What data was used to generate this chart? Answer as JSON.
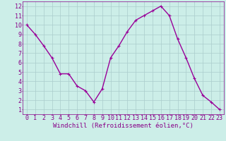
{
  "x": [
    0,
    1,
    2,
    3,
    4,
    5,
    6,
    7,
    8,
    9,
    10,
    11,
    12,
    13,
    14,
    15,
    16,
    17,
    18,
    19,
    20,
    21,
    22,
    23
  ],
  "y": [
    10,
    9,
    7.8,
    6.5,
    4.8,
    4.8,
    3.5,
    3.0,
    1.8,
    3.2,
    6.5,
    7.8,
    9.3,
    10.5,
    11.0,
    11.5,
    12.0,
    11.0,
    8.5,
    6.5,
    4.3,
    2.5,
    1.8,
    1.0
  ],
  "line_color": "#990099",
  "marker": "+",
  "marker_size": 3,
  "bg_color": "#cceee8",
  "grid_color": "#aacccc",
  "xlabel": "Windchill (Refroidissement éolien,°C)",
  "xlim": [
    -0.5,
    23.5
  ],
  "ylim": [
    0.5,
    12.5
  ],
  "xticks": [
    0,
    1,
    2,
    3,
    4,
    5,
    6,
    7,
    8,
    9,
    10,
    11,
    12,
    13,
    14,
    15,
    16,
    17,
    18,
    19,
    20,
    21,
    22,
    23
  ],
  "yticks": [
    1,
    2,
    3,
    4,
    5,
    6,
    7,
    8,
    9,
    10,
    11,
    12
  ],
  "tick_color": "#880088",
  "label_color": "#880088",
  "axis_color": "#880088",
  "xlabel_fontsize": 6.5,
  "tick_fontsize": 6,
  "linewidth": 1.0
}
